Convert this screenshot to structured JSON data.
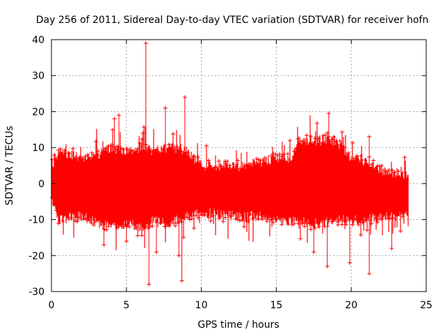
{
  "chart_data": {
    "type": "scatter",
    "title": "Day 256 of 2011, Sidereal Day-to-day VTEC variation (SDTVAR) for receiver hofn",
    "xlabel": "GPS time / hours",
    "ylabel": "SDTVAR / TECUs",
    "xlim": [
      0,
      25
    ],
    "ylim": [
      -30,
      40
    ],
    "xticks": [
      0,
      5,
      10,
      15,
      20,
      25
    ],
    "yticks": [
      -30,
      -20,
      -10,
      0,
      10,
      20,
      30,
      40
    ],
    "grid": true,
    "marker": "plus",
    "color": "#ff0000",
    "series": [
      {
        "name": "SDTVAR",
        "envelope": [
          {
            "x": 0.0,
            "upper": 5,
            "lower": -4
          },
          {
            "x": 0.5,
            "upper": 9,
            "lower": -10
          },
          {
            "x": 1.0,
            "upper": 8,
            "lower": -9
          },
          {
            "x": 2.0,
            "upper": 7,
            "lower": -9
          },
          {
            "x": 3.0,
            "upper": 8,
            "lower": -11
          },
          {
            "x": 4.0,
            "upper": 10,
            "lower": -12
          },
          {
            "x": 5.0,
            "upper": 9,
            "lower": -11
          },
          {
            "x": 6.0,
            "upper": 10,
            "lower": -12
          },
          {
            "x": 7.0,
            "upper": 9,
            "lower": -10
          },
          {
            "x": 8.0,
            "upper": 10,
            "lower": -11
          },
          {
            "x": 9.0,
            "upper": 9,
            "lower": -9
          },
          {
            "x": 10.0,
            "upper": 5,
            "lower": -8
          },
          {
            "x": 11.0,
            "upper": 5,
            "lower": -8
          },
          {
            "x": 12.0,
            "upper": 5,
            "lower": -9
          },
          {
            "x": 13.0,
            "upper": 5,
            "lower": -9
          },
          {
            "x": 14.0,
            "upper": 6,
            "lower": -9
          },
          {
            "x": 15.0,
            "upper": 7,
            "lower": -10
          },
          {
            "x": 16.0,
            "upper": 7,
            "lower": -10
          },
          {
            "x": 16.5,
            "upper": 12,
            "lower": -10
          },
          {
            "x": 17.0,
            "upper": 12,
            "lower": -11
          },
          {
            "x": 18.0,
            "upper": 12,
            "lower": -11
          },
          {
            "x": 19.0,
            "upper": 12,
            "lower": -10
          },
          {
            "x": 20.0,
            "upper": 7,
            "lower": -10
          },
          {
            "x": 21.0,
            "upper": 6,
            "lower": -10
          },
          {
            "x": 22.0,
            "upper": 4,
            "lower": -9
          },
          {
            "x": 23.0,
            "upper": 3,
            "lower": -9
          },
          {
            "x": 23.8,
            "upper": 2,
            "lower": -8
          }
        ],
        "outliers": [
          {
            "x": 6.3,
            "y": 39
          },
          {
            "x": 6.5,
            "y": -28
          },
          {
            "x": 8.9,
            "y": 24
          },
          {
            "x": 8.7,
            "y": -27
          },
          {
            "x": 7.6,
            "y": 21
          },
          {
            "x": 4.5,
            "y": 19
          },
          {
            "x": 18.5,
            "y": 19.5
          },
          {
            "x": 18.5,
            "y": 13
          },
          {
            "x": 18.4,
            "y": -23
          },
          {
            "x": 19.9,
            "y": -22
          },
          {
            "x": 21.2,
            "y": -25
          },
          {
            "x": 22.7,
            "y": -18
          },
          {
            "x": 21.2,
            "y": 13
          },
          {
            "x": 3.5,
            "y": -17
          },
          {
            "x": 5.0,
            "y": -16
          },
          {
            "x": 7.0,
            "y": -19
          },
          {
            "x": 8.5,
            "y": -20
          },
          {
            "x": 17.5,
            "y": -19
          },
          {
            "x": 6.1,
            "y": 14
          },
          {
            "x": 4.2,
            "y": 18
          }
        ]
      }
    ]
  }
}
